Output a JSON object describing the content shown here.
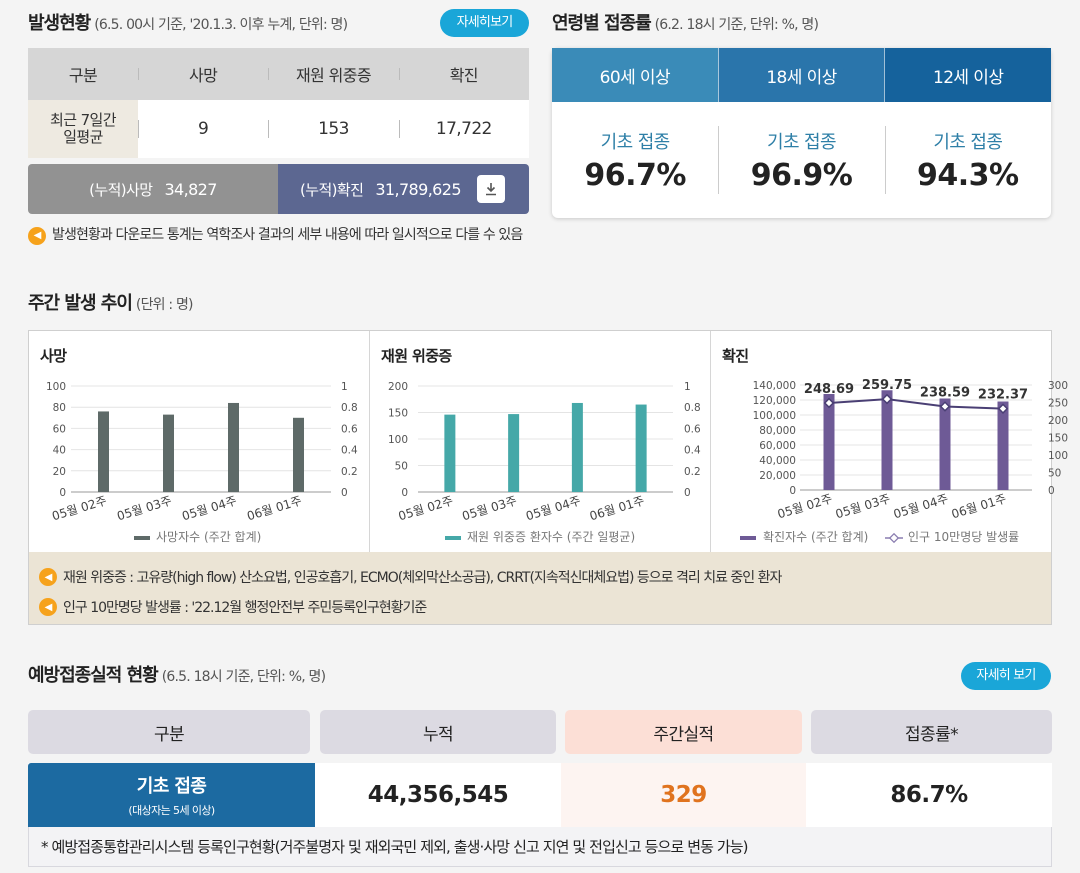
{
  "status": {
    "title": "발생현황",
    "subtitle": "(6.5. 00시 기준, '20.1.3. 이후 누계, 단위: 명)",
    "detail_button": "자세히보기",
    "headers": [
      "구분",
      "사망",
      "재원 위중증",
      "확진"
    ],
    "row_label": "최근 7일간 일평균",
    "row_values": [
      "9",
      "153",
      "17,722"
    ],
    "cum_death_label": "(누적)사망",
    "cum_death_value": "34,827",
    "cum_conf_label": "(누적)확진",
    "cum_conf_value": "31,789,625",
    "notice": "발생현황과 다운로드 통계는 역학조사 결과의 세부 내용에 따라 일시적으로 다를 수 있음"
  },
  "age_vax": {
    "title": "연령별 접종률",
    "subtitle": "(6.2. 18시 기준, 단위: %, 명)",
    "tabs": [
      {
        "label": "60세 이상",
        "color": "#3a8bb8"
      },
      {
        "label": "18세 이상",
        "color": "#2a75ab"
      },
      {
        "label": "12세 이상",
        "color": "#15629c"
      }
    ],
    "cells": [
      {
        "label": "기초 접종",
        "value": "96.7%"
      },
      {
        "label": "기초 접종",
        "value": "96.9%"
      },
      {
        "label": "기초 접종",
        "value": "94.3%"
      }
    ]
  },
  "trend": {
    "title": "주간 발생 추이",
    "subtitle": "(단위 : 명)",
    "notes": [
      "재원 위중증 : 고유량(high flow) 산소요법, 인공호흡기, ECMO(체외막산소공급), CRRT(지속적신대체요법) 등으로 격리 치료 중인 환자",
      "인구 10만명당 발생률 : '22.12월 행정안전부 주민등록인구현황기준"
    ]
  },
  "chart_data": [
    {
      "type": "bar",
      "title": "사망",
      "categories": [
        "05월 02주",
        "05월 03주",
        "05월 04주",
        "06월 01주"
      ],
      "series": [
        {
          "name": "사망자수 (주간 합계)",
          "values": [
            76,
            73,
            84,
            70
          ],
          "color": "#5e6a68"
        }
      ],
      "ylim": [
        0,
        100
      ],
      "yticks": [
        "0",
        "20",
        "40",
        "60",
        "80",
        "100"
      ],
      "y2ticks": [
        "0",
        "0.2",
        "0.4",
        "0.6",
        "0.8",
        "1"
      ]
    },
    {
      "type": "bar",
      "title": "재원 위중증",
      "categories": [
        "05월 02주",
        "05월 03주",
        "05월 04주",
        "06월 01주"
      ],
      "series": [
        {
          "name": "재원 위중증 환자수 (주간 일평균)",
          "values": [
            146,
            147,
            168,
            165
          ],
          "color": "#45a8a8"
        }
      ],
      "ylim": [
        0,
        200
      ],
      "yticks": [
        "0",
        "50",
        "100",
        "150",
        "200"
      ],
      "y2ticks": [
        "0",
        "0.2",
        "0.4",
        "0.6",
        "0.8",
        "1"
      ]
    },
    {
      "type": "bar",
      "title": "확진",
      "categories": [
        "05월 02주",
        "05월 03주",
        "05월 04주",
        "06월 01주"
      ],
      "series": [
        {
          "name": "확진자수 (주간 합계)",
          "values": [
            128000,
            133000,
            122000,
            118000
          ],
          "color": "#6e5a96"
        },
        {
          "name": "인구 10만명당 발생률",
          "values": [
            248.69,
            259.75,
            238.59,
            232.37
          ],
          "color": "#4a3f74",
          "type": "line",
          "labels": [
            "248.69",
            "259.75",
            "238.59",
            "232.37"
          ]
        }
      ],
      "ylim": [
        0,
        140000
      ],
      "y2lim": [
        0,
        300
      ],
      "yticks": [
        "0",
        "20,000",
        "40,000",
        "60,000",
        "80,000",
        "100,000",
        "120,000",
        "140,000"
      ],
      "y2ticks": [
        "0",
        "50",
        "100",
        "150",
        "200",
        "250",
        "300"
      ]
    }
  ],
  "performance": {
    "title": "예방접종실적 현황",
    "subtitle": "(6.5. 18시 기준, 단위: %, 명)",
    "detail_button": "자세히 보기",
    "headers": [
      {
        "label": "구분",
        "bg": "#dcdae2"
      },
      {
        "label": "누적",
        "bg": "#dcdae2"
      },
      {
        "label": "주간실적",
        "bg": "#fcdfd6"
      },
      {
        "label": "접종률*",
        "bg": "#dcdae2"
      }
    ],
    "row_label": "기초 접종",
    "row_sub": "(대상자는 5세 이상)",
    "cumulative": "44,356,545",
    "weekly": "329",
    "rate": "86.7%",
    "weekly_color": "#e0731e",
    "note": "* 예방접종통합관리시스템 등록인구현황(거주불명자 및 재외국민 제외, 출생·사망 신고 지연 및 전입신고 등으로 변동 가능)"
  }
}
